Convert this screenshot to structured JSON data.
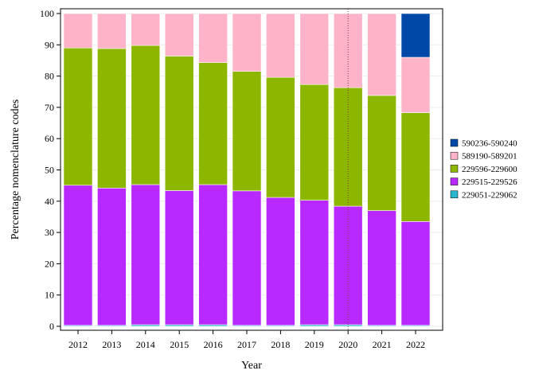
{
  "chart_data": {
    "type": "bar",
    "stacked": true,
    "xlabel": "Year",
    "ylabel": "Percentage nomenclature codes",
    "ylim": [
      0,
      100
    ],
    "yticks": [
      0,
      10,
      20,
      30,
      40,
      50,
      60,
      70,
      80,
      90,
      100
    ],
    "grid": true,
    "legend_position": "right",
    "categories": [
      "2012",
      "2013",
      "2014",
      "2015",
      "2016",
      "2017",
      "2018",
      "2019",
      "2020",
      "2021",
      "2022"
    ],
    "reference_line_category": "2020",
    "series": [
      {
        "name": "229051-229062",
        "color": "#29b6cf",
        "values": [
          0.3,
          0.3,
          0.5,
          0.5,
          0.5,
          0.3,
          0.3,
          0.5,
          0.5,
          0.3,
          0.3
        ]
      },
      {
        "name": "229515-229526",
        "color": "#b829ff",
        "values": [
          44.8,
          43.9,
          44.8,
          42.9,
          44.8,
          43.0,
          40.9,
          39.8,
          37.9,
          36.7,
          33.2
        ]
      },
      {
        "name": "229596-229600",
        "color": "#8db600",
        "values": [
          43.9,
          44.6,
          44.5,
          43.0,
          39.0,
          38.2,
          38.4,
          37.0,
          37.9,
          36.8,
          34.8
        ]
      },
      {
        "name": "589190-589201",
        "color": "#ffb3c8",
        "values": [
          11.0,
          11.2,
          10.2,
          13.6,
          15.7,
          18.5,
          20.4,
          22.7,
          23.7,
          26.2,
          17.7
        ]
      },
      {
        "name": "590236-590240",
        "color": "#0048a8",
        "values": [
          0,
          0,
          0,
          0,
          0,
          0,
          0,
          0,
          0,
          0,
          14.0
        ]
      }
    ]
  }
}
